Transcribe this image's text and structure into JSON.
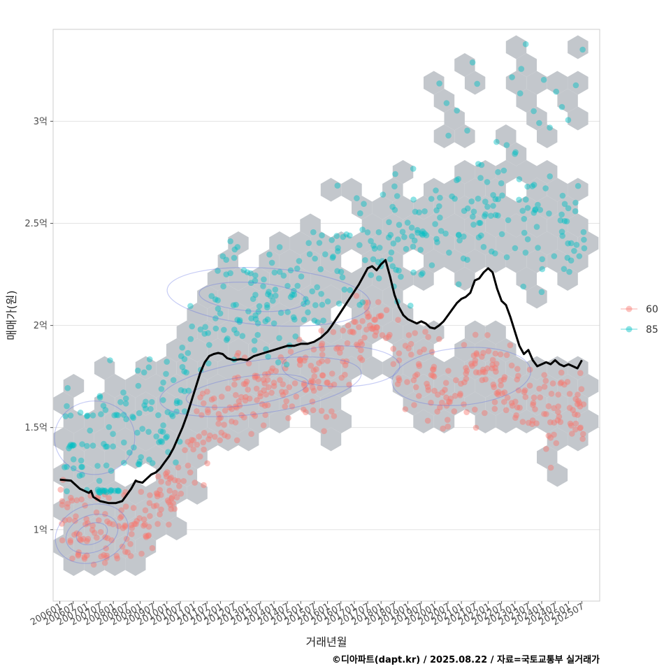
{
  "chart_data": {
    "type": "scatter",
    "xlabel": "거래년월",
    "ylabel": "매매가(원)",
    "caption": "©디아파트(dapt.kr) / 2025.08.22 / 자료=국토교통부 실거래가",
    "x_tick_labels": [
      "200601",
      "200607",
      "200701",
      "200707",
      "200801",
      "200807",
      "200901",
      "200907",
      "201001",
      "201007",
      "201101",
      "201107",
      "201201",
      "201207",
      "201301",
      "201307",
      "201401",
      "201407",
      "201501",
      "201507",
      "201601",
      "201607",
      "201701",
      "201707",
      "201801",
      "201807",
      "201901",
      "201907",
      "202001",
      "202007",
      "202101",
      "202107",
      "202201",
      "202207",
      "202301",
      "202307",
      "202401",
      "202407",
      "202501",
      "202507"
    ],
    "y_ticks": [
      {
        "value": 100000000,
        "label": "1억"
      },
      {
        "value": 150000000,
        "label": "1.5억"
      },
      {
        "value": 200000000,
        "label": "2억"
      },
      {
        "value": 250000000,
        "label": "2.5억"
      },
      {
        "value": 300000000,
        "label": "3억"
      }
    ],
    "xlim": [
      "2005-10",
      "2026-03"
    ],
    "ylim": [
      65000000,
      345000000
    ],
    "grid": "horizontal major",
    "legend_position": "right",
    "series": [
      {
        "name": "60",
        "color": "#F8766D",
        "trend": [
          [
            2006.0,
            118
          ],
          [
            2007.0,
            100
          ],
          [
            2008.0,
            98
          ],
          [
            2009.0,
            103
          ],
          [
            2010.0,
            112
          ],
          [
            2011.0,
            140
          ],
          [
            2012.0,
            160
          ],
          [
            2013.0,
            166
          ],
          [
            2014.0,
            170
          ],
          [
            2015.0,
            172
          ],
          [
            2016.0,
            175
          ],
          [
            2017.0,
            190
          ],
          [
            2018.0,
            203
          ],
          [
            2019.0,
            185
          ],
          [
            2020.0,
            172
          ],
          [
            2021.0,
            172
          ],
          [
            2022.0,
            175
          ],
          [
            2023.0,
            170
          ],
          [
            2024.0,
            162
          ],
          [
            2025.0,
            158
          ],
          [
            2025.5,
            157
          ]
        ]
      },
      {
        "name": "85",
        "color": "#00BFC4",
        "trend": [
          [
            2006.0,
            148
          ],
          [
            2007.0,
            146
          ],
          [
            2008.0,
            150
          ],
          [
            2009.0,
            155
          ],
          [
            2010.0,
            160
          ],
          [
            2011.0,
            185
          ],
          [
            2012.0,
            208
          ],
          [
            2013.0,
            210
          ],
          [
            2014.0,
            212
          ],
          [
            2015.0,
            215
          ],
          [
            2016.0,
            225
          ],
          [
            2017.0,
            240
          ],
          [
            2018.0,
            245
          ],
          [
            2019.0,
            240
          ],
          [
            2020.0,
            245
          ],
          [
            2021.0,
            255
          ],
          [
            2022.0,
            262
          ],
          [
            2023.0,
            255
          ],
          [
            2024.0,
            250
          ],
          [
            2025.0,
            245
          ],
          [
            2025.5,
            243
          ]
        ]
      }
    ],
    "median_line": [
      [
        "2006-01",
        124.5
      ],
      [
        "2006-06",
        124
      ],
      [
        "2006-10",
        120
      ],
      [
        "2007-02",
        118
      ],
      [
        "2007-03",
        119
      ],
      [
        "2007-04",
        116
      ],
      [
        "2007-07",
        114
      ],
      [
        "2007-11",
        113
      ],
      [
        "2008-02",
        113
      ],
      [
        "2008-05",
        114
      ],
      [
        "2008-07",
        117
      ],
      [
        "2008-09",
        120
      ],
      [
        "2008-11",
        124
      ],
      [
        "2008-12",
        123.5
      ],
      [
        "2009-02",
        123
      ],
      [
        "2009-04",
        125
      ],
      [
        "2009-06",
        127
      ],
      [
        "2009-08",
        128
      ],
      [
        "2009-10",
        130
      ],
      [
        "2009-12",
        133
      ],
      [
        "2010-02",
        136
      ],
      [
        "2010-04",
        140
      ],
      [
        "2010-06",
        145
      ],
      [
        "2010-08",
        150
      ],
      [
        "2010-10",
        156
      ],
      [
        "2010-12",
        163
      ],
      [
        "2011-02",
        170
      ],
      [
        "2011-04",
        177
      ],
      [
        "2011-06",
        182
      ],
      [
        "2011-08",
        185
      ],
      [
        "2011-10",
        186
      ],
      [
        "2011-12",
        186.5
      ],
      [
        "2012-02",
        186
      ],
      [
        "2012-04",
        184
      ],
      [
        "2012-07",
        183
      ],
      [
        "2012-10",
        183.5
      ],
      [
        "2013-01",
        183
      ],
      [
        "2013-04",
        185
      ],
      [
        "2013-07",
        186
      ],
      [
        "2013-10",
        187
      ],
      [
        "2014-01",
        188
      ],
      [
        "2014-04",
        189
      ],
      [
        "2014-07",
        190
      ],
      [
        "2014-10",
        190
      ],
      [
        "2015-01",
        191
      ],
      [
        "2015-04",
        191
      ],
      [
        "2015-07",
        192
      ],
      [
        "2015-10",
        194
      ],
      [
        "2016-01",
        197
      ],
      [
        "2016-03",
        200
      ],
      [
        "2016-06",
        205
      ],
      [
        "2016-09",
        210
      ],
      [
        "2016-12",
        215
      ],
      [
        "2017-03",
        220
      ],
      [
        "2017-05",
        224
      ],
      [
        "2017-07",
        228
      ],
      [
        "2017-09",
        229
      ],
      [
        "2017-11",
        227
      ],
      [
        "2018-01",
        230
      ],
      [
        "2018-03",
        232
      ],
      [
        "2018-05",
        224
      ],
      [
        "2018-07",
        215
      ],
      [
        "2018-09",
        209
      ],
      [
        "2018-11",
        205
      ],
      [
        "2019-01",
        203
      ],
      [
        "2019-03",
        202
      ],
      [
        "2019-05",
        201
      ],
      [
        "2019-07",
        202
      ],
      [
        "2019-09",
        201
      ],
      [
        "2019-11",
        199
      ],
      [
        "2020-01",
        198.5
      ],
      [
        "2020-03",
        200
      ],
      [
        "2020-05",
        202
      ],
      [
        "2020-07",
        205
      ],
      [
        "2020-09",
        208
      ],
      [
        "2020-11",
        211
      ],
      [
        "2021-01",
        213
      ],
      [
        "2021-03",
        214
      ],
      [
        "2021-05",
        216
      ],
      [
        "2021-07",
        222
      ],
      [
        "2021-09",
        223
      ],
      [
        "2021-11",
        226
      ],
      [
        "2022-01",
        228
      ],
      [
        "2022-03",
        226
      ],
      [
        "2022-05",
        218
      ],
      [
        "2022-07",
        212
      ],
      [
        "2022-09",
        210
      ],
      [
        "2022-11",
        204
      ],
      [
        "2023-01",
        197
      ],
      [
        "2023-03",
        190
      ],
      [
        "2023-05",
        186
      ],
      [
        "2023-07",
        188
      ],
      [
        "2023-09",
        183
      ],
      [
        "2023-11",
        180
      ],
      [
        "2024-01",
        181
      ],
      [
        "2024-03",
        182
      ],
      [
        "2024-05",
        181
      ],
      [
        "2024-07",
        183
      ],
      [
        "2024-09",
        181
      ],
      [
        "2024-11",
        180
      ],
      [
        "2025-01",
        181
      ],
      [
        "2025-03",
        180
      ],
      [
        "2025-05",
        179
      ],
      [
        "2025-07",
        183
      ]
    ]
  }
}
